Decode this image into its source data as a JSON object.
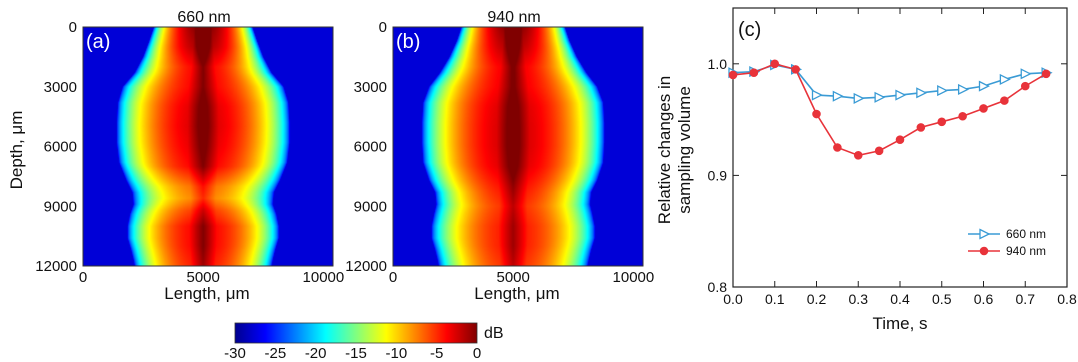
{
  "chart_data": [
    {
      "type": "heatmap",
      "panel_label": "(a)",
      "title": "660 nm",
      "xlabel": "Length, μm",
      "ylabel": "Depth, μm",
      "x_ticks": [
        "0",
        "5000",
        "10000"
      ],
      "y_ticks": [
        "0",
        "3000",
        "6000",
        "9000",
        "12000"
      ],
      "xlim": [
        0,
        10400
      ],
      "ylim": [
        12000,
        0
      ],
      "center_x": 5000,
      "half_width_profile": {
        "depth": [
          0,
          700,
          1500,
          2300,
          3000,
          3800,
          4800,
          5800,
          6800,
          7700,
          8300,
          8900,
          9400,
          10000,
          10600,
          11200,
          11700,
          12000
        ],
        "width_um": [
          2050,
          2250,
          2500,
          2850,
          3350,
          3550,
          3600,
          3600,
          3500,
          3200,
          2950,
          2900,
          3050,
          3150,
          3150,
          3000,
          2900,
          2850
        ]
      },
      "core_intensity_profile": {
        "depth": [
          0,
          1000,
          2000,
          3000,
          4000,
          5000,
          6000,
          7000,
          8000,
          8600,
          9200,
          10000,
          11000,
          12000
        ],
        "value": [
          1.0,
          0.93,
          0.8,
          0.8,
          0.85,
          0.86,
          0.84,
          0.8,
          0.62,
          0.58,
          0.7,
          0.8,
          0.8,
          0.76
        ]
      }
    },
    {
      "type": "heatmap",
      "panel_label": "(b)",
      "title": "940 nm",
      "xlabel": "Length, μm",
      "ylabel": "",
      "x_ticks": [
        "0",
        "5000",
        "10000"
      ],
      "y_ticks": [
        "0",
        "3000",
        "6000",
        "9000",
        "12000"
      ],
      "xlim": [
        0,
        10400
      ],
      "ylim": [
        12000,
        0
      ],
      "center_x": 5000,
      "half_width_profile": {
        "depth": [
          0,
          700,
          1500,
          2300,
          3000,
          3800,
          4800,
          5800,
          6800,
          7700,
          8300,
          8900,
          9400,
          10000,
          10600,
          11200,
          11700,
          12000
        ],
        "width_um": [
          2150,
          2350,
          2650,
          3050,
          3500,
          3750,
          3800,
          3800,
          3750,
          3500,
          3250,
          3200,
          3300,
          3400,
          3400,
          3250,
          3150,
          3100
        ]
      },
      "core_intensity_profile": {
        "depth": [
          0,
          1000,
          2000,
          3000,
          4000,
          5000,
          6000,
          7000,
          8000,
          9000,
          10000,
          11000,
          12000
        ],
        "value": [
          1.0,
          0.92,
          0.82,
          0.82,
          0.86,
          0.87,
          0.87,
          0.85,
          0.78,
          0.72,
          0.76,
          0.76,
          0.72
        ]
      }
    },
    {
      "type": "line",
      "panel_label": "(c)",
      "xlabel": "Time, s",
      "ylabel_lines": [
        "Relative changes in",
        "sampling volume"
      ],
      "xlim": [
        0,
        0.8
      ],
      "ylim": [
        0.8,
        1.05
      ],
      "x_ticks": [
        "0.0",
        "0.1",
        "0.2",
        "0.3",
        "0.4",
        "0.5",
        "0.6",
        "0.7",
        "0.8"
      ],
      "y_ticks": [
        "0.8",
        "0.9",
        "1.0"
      ],
      "legend_position": "bottom-right",
      "series": [
        {
          "name": "660 nm",
          "color": "#3a9bd5",
          "marker": "triangle-right",
          "x": [
            0,
            0.05,
            0.1,
            0.15,
            0.2,
            0.25,
            0.3,
            0.35,
            0.4,
            0.45,
            0.5,
            0.55,
            0.6,
            0.65,
            0.7,
            0.75
          ],
          "y": [
            0.992,
            0.993,
            0.999,
            0.995,
            0.972,
            0.971,
            0.969,
            0.97,
            0.972,
            0.974,
            0.976,
            0.977,
            0.98,
            0.986,
            0.991,
            0.992
          ]
        },
        {
          "name": "940 nm",
          "color": "#e8333a",
          "marker": "circle",
          "x": [
            0,
            0.05,
            0.1,
            0.15,
            0.2,
            0.25,
            0.3,
            0.35,
            0.4,
            0.45,
            0.5,
            0.55,
            0.6,
            0.65,
            0.7,
            0.75
          ],
          "y": [
            0.99,
            0.992,
            1.0,
            0.995,
            0.955,
            0.925,
            0.918,
            0.922,
            0.932,
            0.943,
            0.948,
            0.953,
            0.96,
            0.967,
            0.98,
            0.991
          ]
        }
      ]
    }
  ],
  "colorbar": {
    "unit": "dB",
    "ticks": [
      "-30",
      "-25",
      "-20",
      "-15",
      "-10",
      "-5",
      "0"
    ],
    "range": [
      -30,
      0
    ],
    "colors": [
      "#00008f",
      "#0000ff",
      "#0080ff",
      "#00ffff",
      "#80ff80",
      "#ffff00",
      "#ff8000",
      "#ff0000",
      "#800000"
    ]
  }
}
